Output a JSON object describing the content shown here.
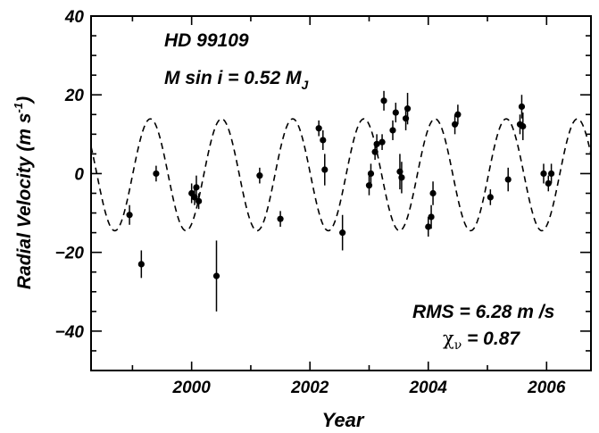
{
  "chart_data": {
    "type": "scatter",
    "xlabel": "Year",
    "ylabel": "Radial Velocity  (m s",
    "ylabel_sup": "-1",
    "ylabel_close": ")",
    "xlim": [
      1998.3,
      2006.75
    ],
    "ylim": [
      -50,
      40
    ],
    "xticks": [
      2000,
      2002,
      2004,
      2006
    ],
    "yticks": [
      40,
      20,
      0,
      -20,
      -40
    ],
    "ytick_labels": [
      "40",
      "20",
      "0",
      "−20",
      "−40"
    ],
    "annotations": {
      "star": "HD 99109",
      "mass_main": "M sin i = 0.52 M",
      "mass_sub": "J",
      "rms": "RMS = 6.28 m /s",
      "chi_symbol": "χ",
      "chi_sub": "ν",
      "chi_value": " = 0.87"
    },
    "model": {
      "style": "dashed",
      "period_years": 1.203,
      "amplitude": 14.2,
      "offset": -0.3,
      "phase_t0": 1998.1
    },
    "series": [
      {
        "points": [
          {
            "x": 1998.95,
            "y": -10.5,
            "err": 2.5
          },
          {
            "x": 1999.15,
            "y": -23.0,
            "err": 3.5
          },
          {
            "x": 1999.4,
            "y": 0.0,
            "err": 2.0
          },
          {
            "x": 2000.0,
            "y": -5.0,
            "err": 2.5
          },
          {
            "x": 2000.05,
            "y": -6.0,
            "err": 2.0
          },
          {
            "x": 2000.08,
            "y": -3.5,
            "err": 3.0
          },
          {
            "x": 2000.12,
            "y": -7.0,
            "err": 2.0
          },
          {
            "x": 2000.42,
            "y": -26.0,
            "err": 9.0
          },
          {
            "x": 2001.15,
            "y": -0.5,
            "err": 2.0
          },
          {
            "x": 2001.5,
            "y": -11.5,
            "err": 2.0
          },
          {
            "x": 2002.15,
            "y": 11.5,
            "err": 2.0
          },
          {
            "x": 2002.22,
            "y": 8.5,
            "err": 2.5
          },
          {
            "x": 2002.25,
            "y": 1.0,
            "err": 4.0
          },
          {
            "x": 2002.55,
            "y": -15.0,
            "err": 4.5
          },
          {
            "x": 2003.0,
            "y": -3.0,
            "err": 2.5
          },
          {
            "x": 2003.03,
            "y": 0.0,
            "err": 2.5
          },
          {
            "x": 2003.1,
            "y": 5.5,
            "err": 2.0
          },
          {
            "x": 2003.13,
            "y": 7.5,
            "err": 2.5
          },
          {
            "x": 2003.22,
            "y": 8.0,
            "err": 2.0
          },
          {
            "x": 2003.25,
            "y": 18.5,
            "err": 2.5
          },
          {
            "x": 2003.4,
            "y": 11.0,
            "err": 2.5
          },
          {
            "x": 2003.45,
            "y": 15.5,
            "err": 2.5
          },
          {
            "x": 2003.52,
            "y": 0.5,
            "err": 4.5
          },
          {
            "x": 2003.55,
            "y": -1.0,
            "err": 4.0
          },
          {
            "x": 2003.62,
            "y": 14.0,
            "err": 3.0
          },
          {
            "x": 2003.65,
            "y": 16.5,
            "err": 4.0
          },
          {
            "x": 2004.0,
            "y": -13.5,
            "err": 2.5
          },
          {
            "x": 2004.05,
            "y": -11.0,
            "err": 3.0
          },
          {
            "x": 2004.08,
            "y": -5.0,
            "err": 3.0
          },
          {
            "x": 2004.45,
            "y": 12.5,
            "err": 2.5
          },
          {
            "x": 2004.5,
            "y": 15.0,
            "err": 2.5
          },
          {
            "x": 2005.05,
            "y": -6.0,
            "err": 2.0
          },
          {
            "x": 2005.35,
            "y": -1.5,
            "err": 3.0
          },
          {
            "x": 2005.55,
            "y": 12.5,
            "err": 2.5
          },
          {
            "x": 2005.58,
            "y": 17.0,
            "err": 3.0
          },
          {
            "x": 2005.6,
            "y": 12.0,
            "err": 3.5
          },
          {
            "x": 2005.95,
            "y": 0.0,
            "err": 2.5
          },
          {
            "x": 2006.03,
            "y": -2.5,
            "err": 2.0
          },
          {
            "x": 2006.08,
            "y": 0.0,
            "err": 2.5
          }
        ]
      }
    ]
  }
}
